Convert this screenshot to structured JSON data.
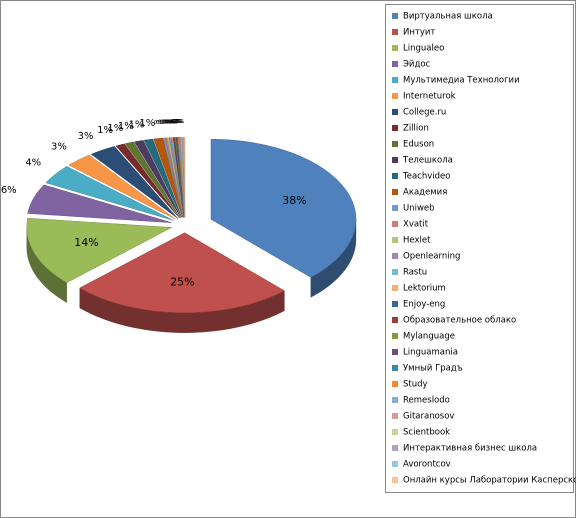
{
  "chart_data": {
    "type": "pie",
    "categories": [
      "Виртуальная школа",
      "Интуит",
      "Lingualeo",
      "Эйдос",
      "Мультимедиа Технологии",
      "Interneturok",
      "College.ru",
      "Zillion",
      "Eduson",
      "Телешкола",
      "Teachvideo",
      "Академия",
      "Uniweb",
      "Xvatit",
      "Hexlet",
      "Openlearning",
      "Rastu",
      "Lektorium",
      "Enjoy-eng",
      "Образовательное облако",
      "Mylanguage",
      "Linguamania",
      "Умный Градъ",
      "Study",
      "Remeslodo",
      "Gitaranosov",
      "Scientbook",
      "Интерактивная бизнес школа",
      "Avorontcov",
      "Онлайн курсы Лаборатории Касперского"
    ],
    "values": [
      38,
      25,
      14,
      6,
      4,
      3,
      3,
      1,
      1,
      1,
      1,
      1,
      0.2,
      0.2,
      0.2,
      0.2,
      0.1,
      0.1,
      0.1,
      0.1,
      0.1,
      0.1,
      0.1,
      0.1,
      0.1,
      0.1,
      0.1,
      0.1,
      0.1,
      0.1
    ],
    "value_labels": [
      "38%",
      "25%",
      "14%",
      "6%",
      "4%",
      "3%",
      "3%",
      "1%",
      "1%",
      "1%",
      "1%",
      "1%",
      "0%",
      "0%",
      "0%",
      "0%",
      "0%",
      "0%",
      "0%",
      "0%",
      "0%",
      "0%",
      "0%",
      "0%",
      "0%",
      "0%",
      "0%",
      "0%",
      "0%",
      "0%"
    ],
    "colors": [
      "#4F81BD",
      "#C0504D",
      "#9BBB59",
      "#8064A2",
      "#4BACC6",
      "#F79646",
      "#2C4D75",
      "#772C2A",
      "#5F7530",
      "#4D3B62",
      "#276A7C",
      "#B65708",
      "#729ACA",
      "#D47775",
      "#AFC97A",
      "#9C87B9",
      "#6FBDD1",
      "#F9AB6B",
      "#3A679C",
      "#9F3B38",
      "#7F9C40",
      "#664F83",
      "#358DA5",
      "#F38A2C",
      "#8BABD4",
      "#D99997",
      "#C2D69A",
      "#B1A1C7",
      "#93CDDD",
      "#FAC090"
    ],
    "legend": "right"
  }
}
